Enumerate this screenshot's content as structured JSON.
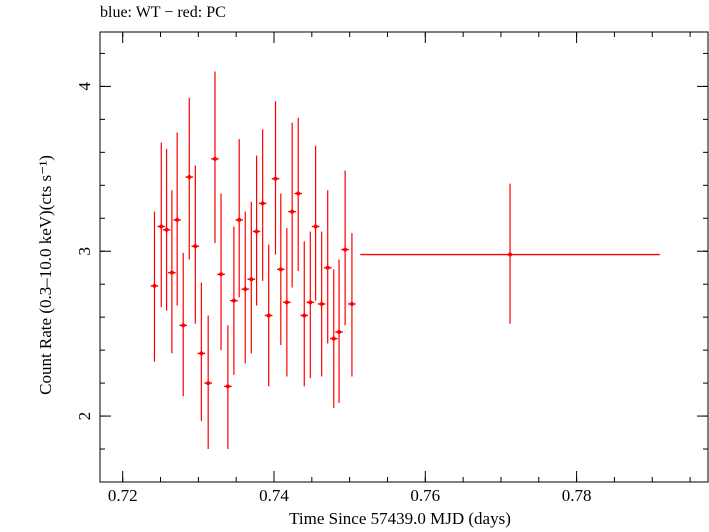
{
  "chart_data": {
    "type": "scatter",
    "title": "blue: WT − red: PC",
    "xlabel": "Time Since 57439.0 MJD (days)",
    "ylabel": "Count Rate (0.3–10.0 keV)(cts s⁻¹)",
    "xlim": [
      0.717,
      0.7975
    ],
    "ylim": [
      1.6,
      4.33
    ],
    "xticks": [
      0.72,
      0.74,
      0.76,
      0.78
    ],
    "xtick_labels": [
      "0.72",
      "0.74",
      "0.76",
      "0.78"
    ],
    "yticks": [
      2,
      3,
      4
    ],
    "ytick_labels": [
      "2",
      "3",
      "4"
    ],
    "grid": false,
    "series": [
      {
        "name": "PC",
        "color": "#ff0000",
        "points": [
          {
            "x": 0.7242,
            "y": 2.79,
            "xerr": 0.0005,
            "ylo": 2.33,
            "yhi": 3.24
          },
          {
            "x": 0.7251,
            "y": 3.15,
            "xerr": 0.0005,
            "ylo": 2.66,
            "yhi": 3.66
          },
          {
            "x": 0.7258,
            "y": 3.13,
            "xerr": 0.0005,
            "ylo": 2.64,
            "yhi": 3.62
          },
          {
            "x": 0.7265,
            "y": 2.87,
            "xerr": 0.0005,
            "ylo": 2.38,
            "yhi": 3.37
          },
          {
            "x": 0.7272,
            "y": 3.19,
            "xerr": 0.0005,
            "ylo": 2.67,
            "yhi": 3.72
          },
          {
            "x": 0.728,
            "y": 2.55,
            "xerr": 0.0005,
            "ylo": 2.12,
            "yhi": 2.99
          },
          {
            "x": 0.7288,
            "y": 3.45,
            "xerr": 0.0005,
            "ylo": 2.95,
            "yhi": 3.93
          },
          {
            "x": 0.7296,
            "y": 3.03,
            "xerr": 0.0005,
            "ylo": 2.56,
            "yhi": 3.52
          },
          {
            "x": 0.7304,
            "y": 2.38,
            "xerr": 0.0005,
            "ylo": 1.97,
            "yhi": 2.81
          },
          {
            "x": 0.7313,
            "y": 2.2,
            "xerr": 0.0005,
            "ylo": 1.8,
            "yhi": 2.61
          },
          {
            "x": 0.7322,
            "y": 3.56,
            "xerr": 0.0005,
            "ylo": 3.05,
            "yhi": 4.09
          },
          {
            "x": 0.733,
            "y": 2.86,
            "xerr": 0.0005,
            "ylo": 2.4,
            "yhi": 3.35
          },
          {
            "x": 0.7339,
            "y": 2.18,
            "xerr": 0.0005,
            "ylo": 1.8,
            "yhi": 2.55
          },
          {
            "x": 0.7347,
            "y": 2.7,
            "xerr": 0.0005,
            "ylo": 2.25,
            "yhi": 3.15
          },
          {
            "x": 0.7354,
            "y": 3.19,
            "xerr": 0.0005,
            "ylo": 2.72,
            "yhi": 3.68
          },
          {
            "x": 0.7362,
            "y": 2.77,
            "xerr": 0.0005,
            "ylo": 2.32,
            "yhi": 3.24
          },
          {
            "x": 0.737,
            "y": 2.83,
            "xerr": 0.0005,
            "ylo": 2.38,
            "yhi": 3.3
          },
          {
            "x": 0.7377,
            "y": 3.12,
            "xerr": 0.0005,
            "ylo": 2.67,
            "yhi": 3.58
          },
          {
            "x": 0.7385,
            "y": 3.29,
            "xerr": 0.0005,
            "ylo": 2.82,
            "yhi": 3.74
          },
          {
            "x": 0.7393,
            "y": 2.61,
            "xerr": 0.0005,
            "ylo": 2.18,
            "yhi": 3.04
          },
          {
            "x": 0.7402,
            "y": 3.44,
            "xerr": 0.0005,
            "ylo": 2.98,
            "yhi": 3.91
          },
          {
            "x": 0.7409,
            "y": 2.89,
            "xerr": 0.0005,
            "ylo": 2.43,
            "yhi": 3.35
          },
          {
            "x": 0.7417,
            "y": 2.69,
            "xerr": 0.0005,
            "ylo": 2.24,
            "yhi": 3.14
          },
          {
            "x": 0.7424,
            "y": 3.24,
            "xerr": 0.0005,
            "ylo": 2.78,
            "yhi": 3.78
          },
          {
            "x": 0.7432,
            "y": 3.35,
            "xerr": 0.0005,
            "ylo": 2.88,
            "yhi": 3.81
          },
          {
            "x": 0.744,
            "y": 2.61,
            "xerr": 0.0005,
            "ylo": 2.18,
            "yhi": 3.06
          },
          {
            "x": 0.7448,
            "y": 2.69,
            "xerr": 0.0005,
            "ylo": 2.23,
            "yhi": 3.12
          },
          {
            "x": 0.7455,
            "y": 3.15,
            "xerr": 0.0005,
            "ylo": 2.7,
            "yhi": 3.64
          },
          {
            "x": 0.7463,
            "y": 2.68,
            "xerr": 0.0005,
            "ylo": 2.24,
            "yhi": 3.12
          },
          {
            "x": 0.7471,
            "y": 2.9,
            "xerr": 0.0005,
            "ylo": 2.44,
            "yhi": 3.37
          },
          {
            "x": 0.7479,
            "y": 2.47,
            "xerr": 0.0005,
            "ylo": 2.05,
            "yhi": 2.89
          },
          {
            "x": 0.7486,
            "y": 2.51,
            "xerr": 0.0005,
            "ylo": 2.08,
            "yhi": 2.95
          },
          {
            "x": 0.7494,
            "y": 3.01,
            "xerr": 0.0005,
            "ylo": 2.55,
            "yhi": 3.49
          },
          {
            "x": 0.7503,
            "y": 2.68,
            "xerr": 0.0005,
            "ylo": 2.24,
            "yhi": 3.11
          },
          {
            "x": 0.7712,
            "y": 2.98,
            "xerr": 0.0198,
            "ylo": 2.56,
            "yhi": 3.41
          }
        ]
      }
    ]
  }
}
